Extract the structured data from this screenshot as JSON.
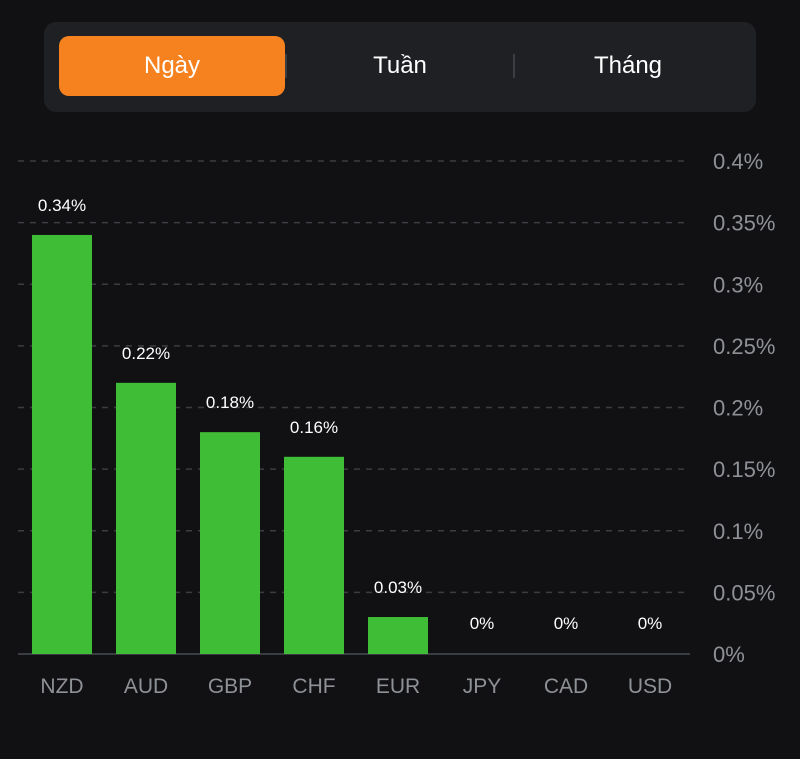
{
  "tabs": [
    {
      "label": "Ngày",
      "active": true
    },
    {
      "label": "Tuần",
      "active": false
    },
    {
      "label": "Tháng",
      "active": false
    }
  ],
  "colors": {
    "accent": "#f5821f",
    "bar": "#40bd36",
    "grid": "#3a3d42",
    "axis_text": "#8e9196"
  },
  "chart_data": {
    "type": "bar",
    "categories": [
      "NZD",
      "AUD",
      "GBP",
      "CHF",
      "EUR",
      "JPY",
      "CAD",
      "USD"
    ],
    "values": [
      0.34,
      0.22,
      0.18,
      0.16,
      0.03,
      0,
      0,
      0
    ],
    "data_labels": [
      "0.34%",
      "0.22%",
      "0.18%",
      "0.16%",
      "0.03%",
      "0%",
      "0%",
      "0%"
    ],
    "ylim": [
      0,
      0.4
    ],
    "y_ticks": [
      0,
      0.05,
      0.1,
      0.15,
      0.2,
      0.25,
      0.3,
      0.35,
      0.4
    ],
    "y_tick_labels": [
      "0%",
      "0.05%",
      "0.1%",
      "0.15%",
      "0.2%",
      "0.25%",
      "0.3%",
      "0.35%",
      "0.4%"
    ],
    "y_axis_position": "right",
    "grid": true,
    "title": "",
    "xlabel": "",
    "ylabel": ""
  }
}
